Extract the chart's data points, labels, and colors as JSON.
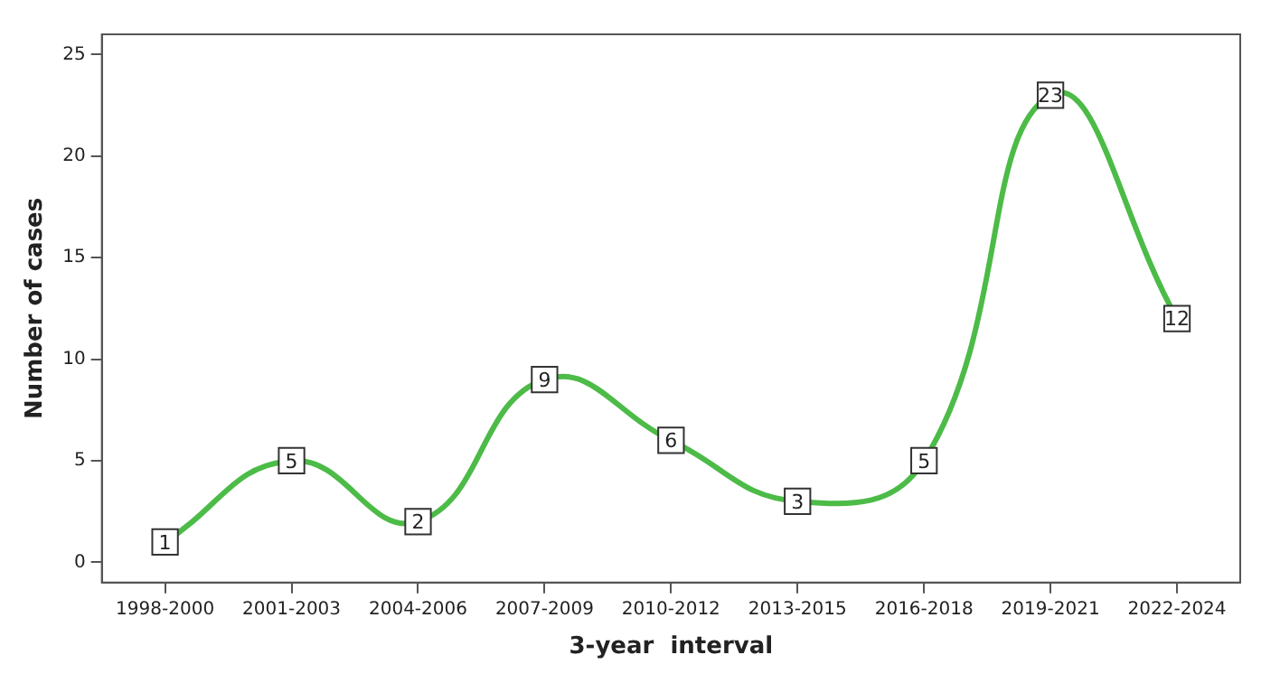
{
  "chart_data": {
    "type": "line",
    "xlabel": "3-year  interval",
    "ylabel": "Number of cases",
    "categories": [
      "1998-2000",
      "2001-2003",
      "2004-2006",
      "2007-2009",
      "2010-2012",
      "2013-2015",
      "2016-2018",
      "2019-2021",
      "2022-2024"
    ],
    "series": [
      {
        "color": "#4cbb47",
        "values": [
          1,
          5,
          2,
          9,
          6,
          3,
          5,
          23,
          12
        ]
      }
    ],
    "ylim": [
      -1,
      26
    ],
    "yticks": [
      0,
      5,
      10,
      15,
      20,
      25
    ],
    "grid": false,
    "legend": false,
    "marker": "square",
    "line_style": "solid",
    "data_labels": true
  }
}
